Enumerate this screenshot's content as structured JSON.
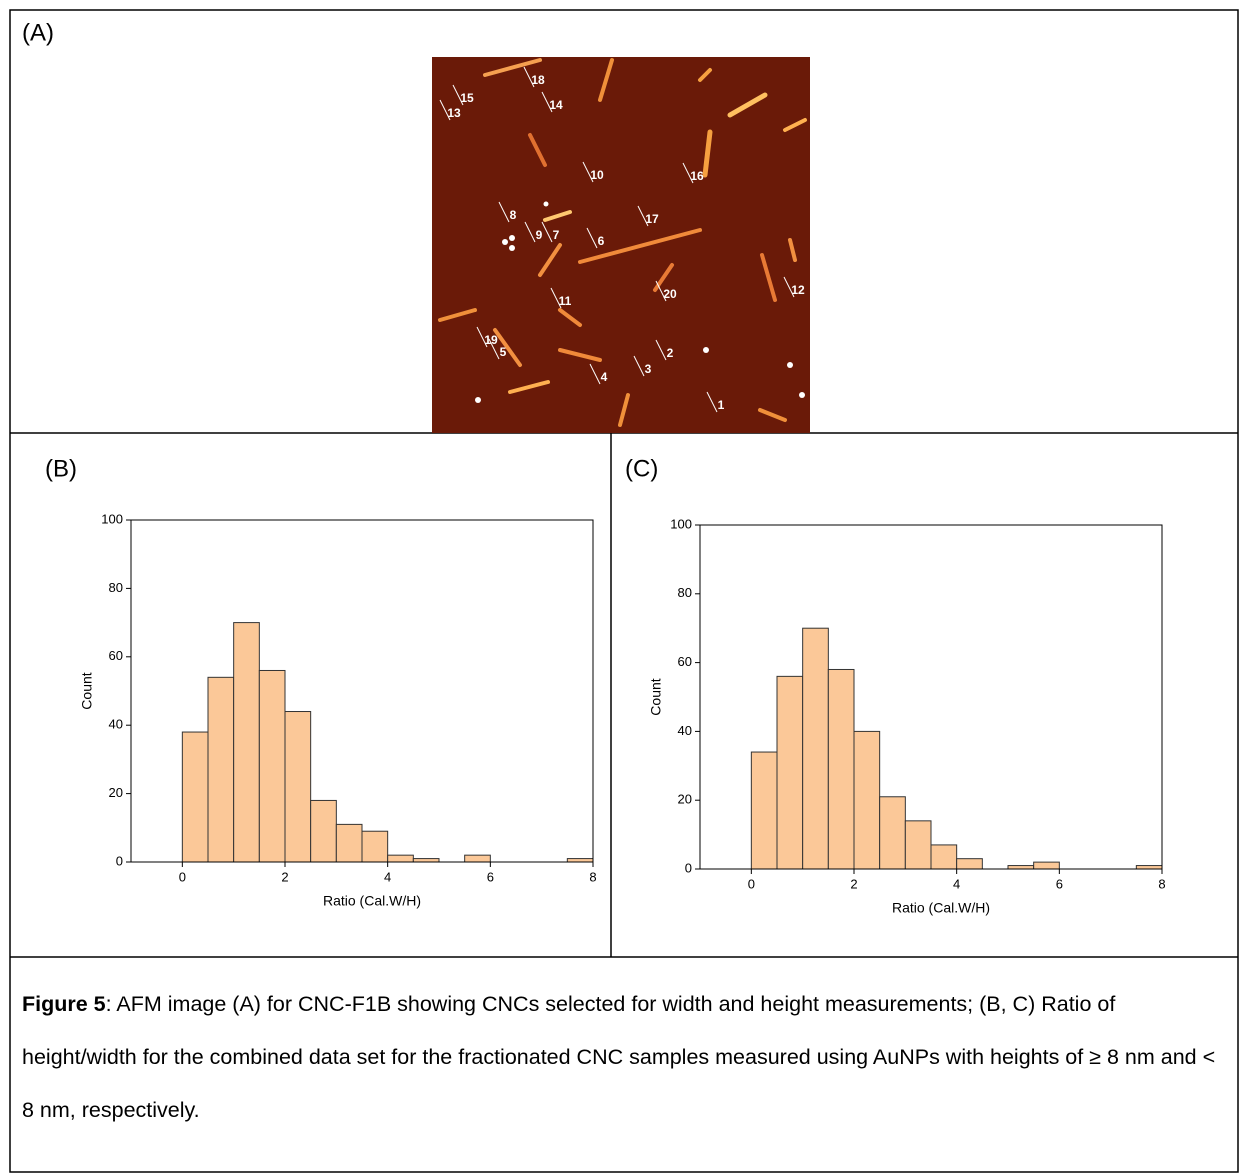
{
  "panel_a": {
    "label": "(A)",
    "image_labels": [
      "18",
      "15",
      "14",
      "13",
      "10",
      "16",
      "8",
      "17",
      "9",
      "7",
      "6",
      "12",
      "20",
      "11",
      "19",
      "5",
      "2",
      "3",
      "4",
      "1"
    ]
  },
  "chart_data": [
    {
      "type": "histogram",
      "panel_label": "(B)",
      "xlabel": "Ratio (Cal.W/H)",
      "ylabel": "Count",
      "bins": [
        0,
        0.5,
        1,
        1.5,
        2,
        2.5,
        3,
        3.5,
        4,
        4.5,
        5,
        5.5,
        6,
        6.5,
        7,
        7.5,
        8
      ],
      "values": [
        38,
        54,
        70,
        56,
        44,
        18,
        11,
        9,
        2,
        1,
        0,
        2,
        0,
        0,
        0,
        1
      ],
      "color": "#fbc898",
      "xlim": [
        -1,
        8
      ],
      "ylim": [
        0,
        100
      ],
      "xticks": [
        0,
        2,
        4,
        6,
        8
      ],
      "yticks": [
        0,
        20,
        40,
        60,
        80,
        100
      ]
    },
    {
      "type": "histogram",
      "panel_label": "(C)",
      "xlabel": "Ratio (Cal.W/H)",
      "ylabel": "Count",
      "bins": [
        0,
        0.5,
        1,
        1.5,
        2,
        2.5,
        3,
        3.5,
        4,
        4.5,
        5,
        5.5,
        6,
        6.5,
        7,
        7.5,
        8
      ],
      "values": [
        34,
        56,
        70,
        58,
        40,
        21,
        14,
        7,
        3,
        0,
        1,
        2,
        0,
        0,
        0,
        1
      ],
      "color": "#fbc898",
      "xlim": [
        -1,
        8
      ],
      "ylim": [
        0,
        100
      ],
      "xticks": [
        0,
        2,
        4,
        6,
        8
      ],
      "yticks": [
        0,
        20,
        40,
        60,
        80,
        100
      ]
    }
  ],
  "caption": {
    "label": "Figure 5",
    "text": ": AFM image (A) for CNC-F1B showing CNCs selected for width and height measurements; (B, C) Ratio of height/width for the combined data set for the fractionated CNC samples measured using AuNPs with heights of ≥ 8 nm and < 8 nm, respectively."
  }
}
